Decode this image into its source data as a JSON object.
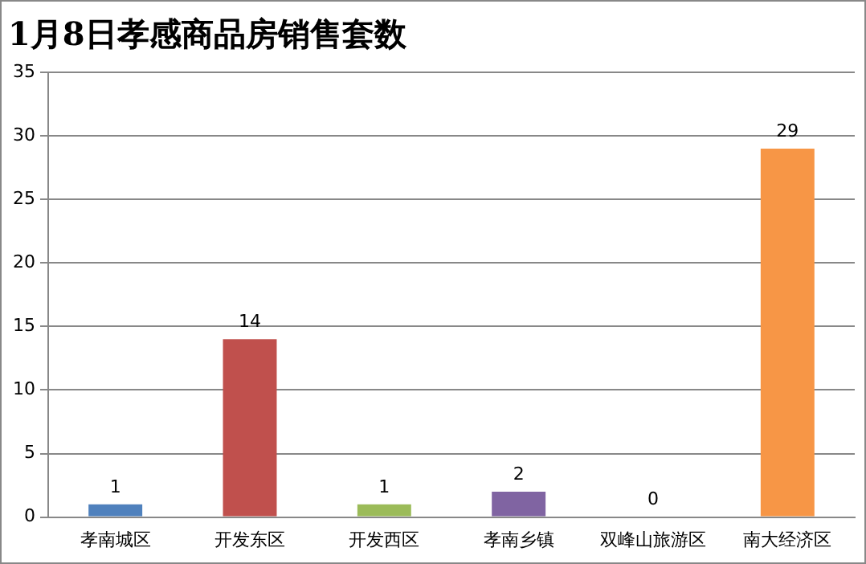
{
  "chart_data": {
    "type": "bar",
    "title": "1月8日孝感商品房销售套数",
    "categories": [
      "孝南城区",
      "开发东区",
      "开发西区",
      "孝南乡镇",
      "双峰山旅游区",
      "南大经济区"
    ],
    "values": [
      1,
      14,
      1,
      2,
      0,
      29
    ],
    "colors": [
      "#4f81bd",
      "#c0504d",
      "#9bbb59",
      "#8064a2",
      "#4bacc6",
      "#f79646"
    ],
    "ylim": [
      0,
      35
    ],
    "yticks": [
      0,
      5,
      10,
      15,
      20,
      25,
      30,
      35
    ],
    "grid": "y",
    "data_labels": true
  }
}
